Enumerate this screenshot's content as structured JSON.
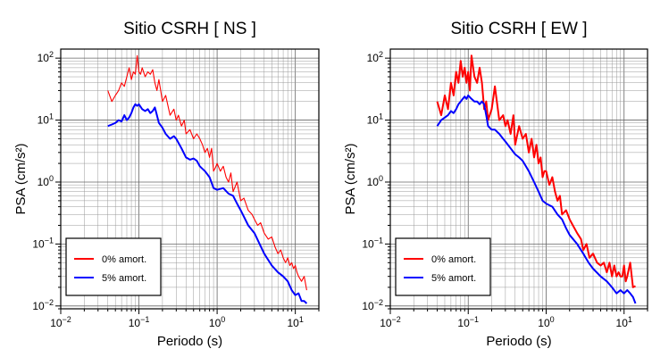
{
  "chart_data": [
    {
      "type": "line",
      "title": "Sitio CSRH [ NS ]",
      "xlabel": "Periodo (s)",
      "ylabel": "PSA (cm/s²)",
      "xscale": "log",
      "yscale": "log",
      "xlim": [
        0.01,
        20
      ],
      "ylim": [
        0.009,
        140
      ],
      "grid": true,
      "legend_position": "bottom-left",
      "xticks": [
        {
          "value": 0.01,
          "base": "10",
          "exp": "−2"
        },
        {
          "value": 0.1,
          "base": "10",
          "exp": "−1"
        },
        {
          "value": 1,
          "base": "10",
          "exp": "0"
        },
        {
          "value": 10,
          "base": "10",
          "exp": "1"
        }
      ],
      "yticks": [
        {
          "value": 0.01,
          "base": "10",
          "exp": "−2"
        },
        {
          "value": 0.1,
          "base": "10",
          "exp": "−1"
        },
        {
          "value": 1,
          "base": "10",
          "exp": "0"
        },
        {
          "value": 10,
          "base": "10",
          "exp": "1"
        },
        {
          "value": 100,
          "base": "10",
          "exp": "2"
        }
      ],
      "series": [
        {
          "name": "0% amort.",
          "color": "#ff0000",
          "stroke": "thin",
          "x": [
            0.04,
            0.045,
            0.05,
            0.055,
            0.06,
            0.065,
            0.07,
            0.075,
            0.08,
            0.085,
            0.09,
            0.095,
            0.1,
            0.105,
            0.11,
            0.12,
            0.13,
            0.14,
            0.15,
            0.16,
            0.17,
            0.18,
            0.2,
            0.22,
            0.25,
            0.28,
            0.3,
            0.32,
            0.35,
            0.38,
            0.4,
            0.45,
            0.5,
            0.55,
            0.6,
            0.65,
            0.7,
            0.75,
            0.8,
            0.85,
            0.9,
            0.95,
            1.0,
            1.1,
            1.2,
            1.3,
            1.4,
            1.5,
            1.6,
            1.8,
            2.0,
            2.2,
            2.5,
            2.8,
            3.0,
            3.3,
            3.6,
            4.0,
            4.5,
            5.0,
            5.5,
            6.0,
            6.5,
            7.0,
            7.5,
            8.0,
            8.5,
            9.0,
            9.5,
            10,
            10.5,
            11,
            12,
            13,
            14
          ],
          "y": [
            30,
            20,
            25,
            30,
            40,
            35,
            50,
            70,
            45,
            60,
            55,
            110,
            60,
            55,
            70,
            50,
            60,
            55,
            65,
            40,
            30,
            45,
            20,
            25,
            12,
            15,
            10,
            12,
            8,
            10,
            6,
            7,
            5,
            6,
            5,
            4,
            3,
            3.5,
            2.5,
            3.5,
            1.5,
            1.7,
            2.0,
            1.5,
            1.8,
            1.2,
            1.0,
            1.4,
            0.7,
            1.0,
            0.5,
            0.55,
            0.35,
            0.3,
            0.25,
            0.2,
            0.22,
            0.15,
            0.12,
            0.13,
            0.09,
            0.07,
            0.08,
            0.06,
            0.05,
            0.06,
            0.045,
            0.05,
            0.04,
            0.045,
            0.035,
            0.03,
            0.025,
            0.03,
            0.018
          ]
        },
        {
          "name": "5% amort.",
          "color": "#0000ff",
          "stroke": "thick",
          "x": [
            0.04,
            0.045,
            0.05,
            0.055,
            0.06,
            0.065,
            0.07,
            0.075,
            0.08,
            0.085,
            0.09,
            0.095,
            0.1,
            0.11,
            0.12,
            0.13,
            0.14,
            0.15,
            0.16,
            0.17,
            0.18,
            0.2,
            0.22,
            0.25,
            0.28,
            0.3,
            0.35,
            0.4,
            0.45,
            0.5,
            0.55,
            0.6,
            0.7,
            0.8,
            0.9,
            1.0,
            1.2,
            1.4,
            1.6,
            1.8,
            2.0,
            2.5,
            3.0,
            3.5,
            4.0,
            5.0,
            6.0,
            7.0,
            8.0,
            9.0,
            10,
            11,
            12,
            13,
            14
          ],
          "y": [
            8,
            8.5,
            9,
            10,
            9.5,
            12,
            10,
            11,
            13,
            16,
            18,
            17,
            18,
            15,
            14,
            15,
            13,
            14,
            16,
            12,
            9,
            7.5,
            6,
            5,
            5.5,
            5,
            3.5,
            2.5,
            2.3,
            2.4,
            2.2,
            1.8,
            1.5,
            1.2,
            0.8,
            0.75,
            0.8,
            0.65,
            0.6,
            0.45,
            0.35,
            0.2,
            0.15,
            0.1,
            0.07,
            0.045,
            0.035,
            0.03,
            0.025,
            0.018,
            0.015,
            0.016,
            0.012,
            0.012,
            0.011
          ]
        }
      ]
    },
    {
      "type": "line",
      "title": "Sitio CSRH [ EW ]",
      "xlabel": "Periodo (s)",
      "ylabel": "PSA (cm/s²)",
      "xscale": "log",
      "yscale": "log",
      "xlim": [
        0.01,
        20
      ],
      "ylim": [
        0.009,
        140
      ],
      "grid": true,
      "legend_position": "bottom-left",
      "xticks": [
        {
          "value": 0.01,
          "base": "10",
          "exp": "−2"
        },
        {
          "value": 0.1,
          "base": "10",
          "exp": "−1"
        },
        {
          "value": 1,
          "base": "10",
          "exp": "0"
        },
        {
          "value": 10,
          "base": "10",
          "exp": "1"
        }
      ],
      "yticks": [
        {
          "value": 0.01,
          "base": "10",
          "exp": "−2"
        },
        {
          "value": 0.1,
          "base": "10",
          "exp": "−1"
        },
        {
          "value": 1,
          "base": "10",
          "exp": "0"
        },
        {
          "value": 10,
          "base": "10",
          "exp": "1"
        },
        {
          "value": 100,
          "base": "10",
          "exp": "2"
        }
      ],
      "series": [
        {
          "name": "0% amort.",
          "color": "#ff0000",
          "stroke": "thick",
          "x": [
            0.04,
            0.045,
            0.05,
            0.055,
            0.06,
            0.065,
            0.07,
            0.075,
            0.08,
            0.085,
            0.09,
            0.095,
            0.1,
            0.105,
            0.11,
            0.12,
            0.13,
            0.14,
            0.15,
            0.16,
            0.17,
            0.18,
            0.2,
            0.22,
            0.25,
            0.28,
            0.3,
            0.32,
            0.35,
            0.38,
            0.4,
            0.45,
            0.5,
            0.55,
            0.6,
            0.65,
            0.7,
            0.75,
            0.8,
            0.85,
            0.9,
            0.95,
            1.0,
            1.1,
            1.2,
            1.3,
            1.4,
            1.5,
            1.6,
            1.8,
            2.0,
            2.2,
            2.5,
            2.8,
            3.0,
            3.3,
            3.6,
            4.0,
            4.5,
            5.0,
            5.5,
            6.0,
            6.5,
            7.0,
            7.5,
            8.0,
            8.5,
            9.0,
            9.5,
            10,
            10.5,
            11,
            12,
            13,
            14
          ],
          "y": [
            20,
            12,
            25,
            15,
            40,
            25,
            60,
            40,
            90,
            50,
            70,
            40,
            60,
            30,
            110,
            50,
            40,
            70,
            40,
            15,
            20,
            10,
            15,
            35,
            10,
            12,
            8,
            10,
            6,
            12,
            4,
            8,
            5,
            6,
            3,
            5,
            2.5,
            4,
            2,
            2.5,
            1.2,
            1.5,
            1.5,
            0.9,
            1.2,
            0.7,
            0.5,
            0.6,
            0.3,
            0.35,
            0.25,
            0.2,
            0.15,
            0.12,
            0.08,
            0.1,
            0.06,
            0.07,
            0.05,
            0.045,
            0.05,
            0.035,
            0.05,
            0.03,
            0.045,
            0.03,
            0.035,
            0.03,
            0.03,
            0.045,
            0.025,
            0.03,
            0.05,
            0.02,
            0.021
          ]
        },
        {
          "name": "5% amort.",
          "color": "#0000ff",
          "stroke": "thick",
          "x": [
            0.04,
            0.045,
            0.05,
            0.055,
            0.06,
            0.065,
            0.07,
            0.075,
            0.08,
            0.085,
            0.09,
            0.095,
            0.1,
            0.11,
            0.12,
            0.13,
            0.14,
            0.15,
            0.16,
            0.17,
            0.18,
            0.2,
            0.22,
            0.25,
            0.28,
            0.3,
            0.35,
            0.4,
            0.45,
            0.5,
            0.55,
            0.6,
            0.7,
            0.8,
            0.9,
            1.0,
            1.2,
            1.4,
            1.6,
            1.8,
            2.0,
            2.5,
            3.0,
            3.5,
            4.0,
            5.0,
            6.0,
            7.0,
            8.0,
            9.0,
            10,
            11,
            12,
            13,
            14
          ],
          "y": [
            8,
            10,
            11,
            12,
            14,
            13,
            15,
            18,
            20,
            22,
            24,
            22,
            25,
            22,
            20,
            20,
            18,
            20,
            18,
            12,
            8,
            7,
            7,
            6,
            5,
            4.5,
            3.5,
            2.8,
            2.5,
            2.2,
            1.8,
            1.5,
            1.0,
            0.7,
            0.5,
            0.45,
            0.4,
            0.3,
            0.25,
            0.18,
            0.14,
            0.1,
            0.07,
            0.05,
            0.04,
            0.03,
            0.025,
            0.02,
            0.016,
            0.018,
            0.016,
            0.018,
            0.016,
            0.014,
            0.011
          ]
        }
      ]
    }
  ]
}
